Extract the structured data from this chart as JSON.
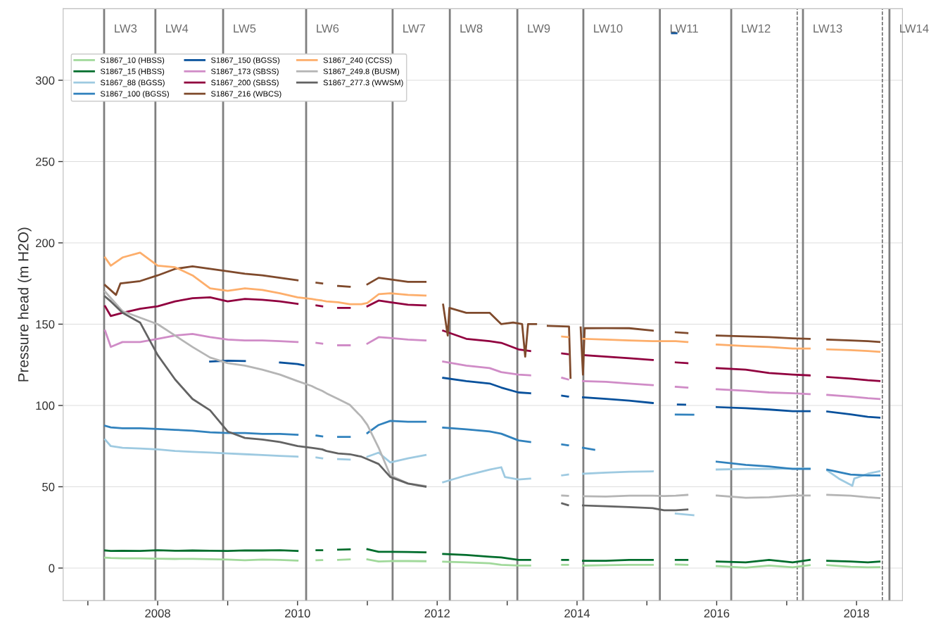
{
  "chart_data": {
    "type": "line",
    "ylabel": "Pressure head (m H2O)",
    "x": [
      "2007-04",
      "2007-05",
      "2007-07",
      "2007-10",
      "2008-01",
      "2008-04",
      "2008-07",
      "2008-10",
      "2009-01",
      "2009-04",
      "2009-07",
      "2009-10",
      "2010-01",
      "2010-03-15",
      "2010-04-10",
      "2010-05-10",
      "2010-06-01",
      "2010-08",
      "2010-10",
      "2010-12-01",
      "2011-01",
      "2011-03",
      "2011-05",
      "2011-08",
      "2011-11",
      "2012-01",
      "2012-02",
      "2012-06",
      "2012-10",
      "2012-12",
      "2013-03",
      "2013-05",
      "2013-07",
      "2013-10-15",
      "2013-11-15",
      "2013-12",
      "2014-02",
      "2014-06",
      "2014-10",
      "2015-02",
      "2015-04",
      "2015-06",
      "2015-08",
      "2015-11",
      "2016-01",
      "2016-06",
      "2016-10",
      "2017-02",
      "2017-05",
      "2017-07",
      "2017-08",
      "2017-12",
      "2018-03",
      "2018-05"
    ],
    "series": [
      {
        "name": "S1867_10 (HBSS)",
        "color": "#a1d99b",
        "values": [
          6.4,
          6.2,
          6,
          6,
          5.8,
          5.6,
          5.7,
          5.4,
          5.2,
          4.8,
          5.2,
          5,
          4.6,
          null,
          4.8,
          4.9,
          null,
          5,
          5.3,
          null,
          5.3,
          4,
          4.3,
          4.3,
          4.2,
          null,
          3.9,
          3.5,
          3,
          2,
          1.5,
          1.5,
          null,
          2,
          2,
          null,
          1.5,
          1.8,
          2,
          2,
          null,
          2.2,
          2,
          null,
          1.2,
          0.2,
          1.5,
          0.5,
          1.8,
          null,
          1.8,
          0.8,
          0.5,
          0.6
        ]
      },
      {
        "name": "S1867_15 (HBSS)",
        "color": "#006d2c",
        "values": [
          10.8,
          10.5,
          10.6,
          10.5,
          11,
          10.6,
          10.8,
          10.6,
          10.5,
          10.9,
          10.8,
          11,
          10.5,
          null,
          11,
          11,
          null,
          11.3,
          11.5,
          null,
          11.6,
          10,
          10,
          9.9,
          9.7,
          null,
          8.7,
          8,
          7,
          6.5,
          5,
          5,
          null,
          5,
          5,
          null,
          4.5,
          4.5,
          5,
          5,
          null,
          5,
          5,
          null,
          4,
          3.5,
          5,
          3.5,
          5,
          null,
          4.5,
          4,
          3.5,
          4
        ]
      },
      {
        "name": "S1867_88 (BGSS)",
        "color": "#9ecae1",
        "x": [
          "2007-04",
          "2007-05",
          "2007-07",
          "2007-10",
          "2008-01",
          "2008-04",
          "2008-07",
          "2008-10",
          "2009-01",
          "2009-04",
          "2009-07",
          "2009-10",
          "2010-01",
          "2010-03-15",
          "2010-04-10",
          "2010-05-10",
          "2010-06-01",
          "2010-08",
          "2010-10",
          "2010-12-01",
          "2011-01",
          "2011-03",
          "2011-05",
          "2011-08",
          "2011-11",
          "2012-01",
          "2012-02",
          "2012-06",
          "2012-10",
          "2012-12-01",
          "2012-12-20",
          "2013-03",
          "2013-05",
          "2013-07",
          "2013-10-15",
          "2013-11-15",
          "2013-12",
          "2014-02",
          "2014-06",
          "2014-10",
          "2015-02",
          "2015-04",
          "2015-06",
          "2015-09",
          "2015-11",
          "2016-01",
          "2016-06",
          "2016-10",
          "2017-02",
          "2017-05",
          "2017-07",
          "2017-08",
          "2017-10",
          "2017-12-10",
          "2017-12-20",
          "2018-03",
          "2018-05"
        ],
        "values": [
          79,
          75,
          74,
          73.5,
          73,
          72,
          71.5,
          71,
          70.5,
          70,
          69.5,
          69,
          68.5,
          null,
          68,
          67.5,
          null,
          67,
          66.7,
          null,
          68.5,
          71,
          65,
          67.5,
          69.5,
          null,
          52.8,
          57,
          60.5,
          62,
          56,
          54.5,
          55,
          null,
          57,
          57.5,
          null,
          58,
          58.7,
          59.2,
          59.5,
          null,
          33.5,
          32.5,
          null,
          60.6,
          61,
          61,
          61.2,
          61.3,
          null,
          60,
          55,
          50.6,
          55,
          58,
          59.5
        ]
      },
      {
        "name": "S1867_100 (BGSS)",
        "color": "#3182bd",
        "x": [
          "2007-04",
          "2007-05",
          "2007-07",
          "2007-10",
          "2008-01",
          "2008-04",
          "2008-07",
          "2008-10",
          "2009-01",
          "2009-04",
          "2009-07",
          "2009-10",
          "2010-01",
          "2010-03-15",
          "2010-04-10",
          "2010-05-10",
          "2010-06-01",
          "2010-08",
          "2010-10",
          "2010-12-01",
          "2011-01",
          "2011-03",
          "2011-05",
          "2011-08",
          "2011-11",
          "2012-01",
          "2012-02",
          "2012-06",
          "2012-10",
          "2012-12",
          "2013-03",
          "2013-05",
          "2013-07",
          "2013-10-15",
          "2013-11-15",
          "2013-12",
          "2014-02",
          "2014-04",
          "2014-06",
          "2015-06",
          "2015-09",
          "2015-11",
          "2016-01",
          "2016-06",
          "2016-10",
          "2017-02",
          "2017-05",
          "2017-07",
          "2017-08",
          "2017-12",
          "2018-03",
          "2018-05"
        ],
        "values": [
          87.5,
          86.5,
          86,
          86,
          85.5,
          85,
          84.5,
          83.5,
          83,
          83,
          82.5,
          82.5,
          82,
          null,
          81.5,
          81,
          null,
          80.7,
          80.7,
          null,
          83,
          88,
          90.5,
          90,
          90,
          null,
          86.4,
          85.3,
          84,
          82.6,
          78.5,
          77.5,
          null,
          76,
          75.5,
          null,
          74,
          72.8,
          null,
          94.4,
          94.3,
          null,
          65.4,
          63.5,
          62.5,
          61,
          61,
          null,
          60.5,
          57.5,
          57,
          57
        ]
      },
      {
        "name": "S1867_150 (BGSS)",
        "color": "#08519c",
        "x": [
          "2008-10",
          "2009-01",
          "2009-04",
          "2009-06",
          "2009-10",
          "2010-01",
          "2010-02",
          "2011-06",
          "2012-02",
          "2012-06",
          "2012-10",
          "2012-12",
          "2013-03",
          "2013-05",
          "2013-07",
          "2013-10-15",
          "2013-11-15",
          "2013-12",
          "2014-02",
          "2014-06",
          "2014-10",
          "2015-02",
          "2015-03-25",
          "2015-05-12",
          "2015-06-05",
          "2015-06-08",
          "2015-06-12",
          "2015-07-20",
          "2015-11",
          "2016-01",
          "2016-06",
          "2016-10",
          "2017-02",
          "2017-05",
          "2017-07",
          "2017-08",
          "2017-12",
          "2018-03",
          "2018-05"
        ],
        "values": [
          127,
          127.5,
          127.3,
          null,
          126.4,
          125.5,
          124.7,
          null,
          117,
          115,
          113.5,
          111,
          108,
          107.5,
          null,
          106,
          105.5,
          null,
          105,
          104,
          103,
          101.5,
          null,
          329,
          329,
          null,
          100.6,
          100.5,
          null,
          99,
          98.3,
          97.5,
          96.5,
          96.5,
          null,
          96.3,
          94.5,
          93,
          92.5
        ]
      },
      {
        "name": "S1867_173 (SBSS)",
        "color": "#d08cc7",
        "values": [
          146,
          136,
          139,
          139,
          141,
          143,
          144,
          142,
          140.5,
          140,
          140,
          139.5,
          139,
          null,
          138.5,
          138,
          null,
          137,
          137,
          null,
          138,
          142,
          141.5,
          140.5,
          140,
          null,
          127,
          124.5,
          123,
          120.5,
          119,
          118.5,
          null,
          117,
          116,
          null,
          115,
          114.5,
          113.5,
          112.5,
          null,
          111.5,
          111,
          null,
          110,
          109,
          108,
          107.5,
          107,
          null,
          106.5,
          105.5,
          104.5,
          104
        ]
      },
      {
        "name": "S1867_200 (SBSS)",
        "color": "#91003f",
        "values": [
          161,
          155,
          157,
          159.5,
          161,
          164,
          166,
          166.5,
          164,
          165.5,
          165,
          164,
          162.5,
          null,
          161.5,
          161,
          null,
          160,
          160,
          null,
          161,
          164.5,
          163.5,
          162,
          161.5,
          null,
          146,
          141,
          139.5,
          138.5,
          134.5,
          133.5,
          null,
          132,
          131.5,
          null,
          131,
          130,
          129,
          128,
          null,
          126.5,
          126,
          null,
          123,
          122,
          120,
          119,
          118.5,
          null,
          117.5,
          116.5,
          115.5,
          115
        ]
      },
      {
        "name": "S1867_216 (WBCS)",
        "color": "#7f4a2c",
        "x": [
          "2007-04",
          "2007-05-28",
          "2007-06-20",
          "2007-10",
          "2008-01",
          "2008-04",
          "2008-07",
          "2008-10",
          "2009-01",
          "2009-04",
          "2009-07",
          "2009-10",
          "2010-01",
          "2010-03-15",
          "2010-04-10",
          "2010-05-10",
          "2010-06-01",
          "2010-08",
          "2010-10",
          "2010-12-01",
          "2011-01",
          "2011-03",
          "2011-05",
          "2011-08",
          "2011-11",
          "2012-01",
          "2012-02",
          "2012-02-25",
          "2012-03-05",
          "2012-06",
          "2012-10",
          "2012-12",
          "2013-02",
          "2013-03-20",
          "2013-04-05",
          "2013-04-20",
          "2013-06",
          "2013-07",
          "2013-08",
          "2013-11-20",
          "2013-11-28",
          "2013-12-10",
          "2014-01-20",
          "2014-02-01",
          "2014-02-10",
          "2014-06",
          "2014-10",
          "2015-02",
          "2015-04",
          "2015-06",
          "2015-08",
          "2015-11",
          "2016-01",
          "2016-06",
          "2016-10",
          "2017-02",
          "2017-05",
          "2017-07",
          "2017-08",
          "2017-12",
          "2018-03",
          "2018-05"
        ],
        "values": [
          174,
          168,
          175,
          176.5,
          180,
          184,
          185.5,
          184,
          182.5,
          181,
          180,
          178.5,
          177,
          null,
          175.5,
          175,
          null,
          173.5,
          173,
          null,
          174.5,
          178.5,
          177.5,
          176,
          176,
          null,
          162,
          143,
          160,
          157,
          157,
          150,
          151,
          150,
          130,
          150,
          150,
          null,
          149,
          148.5,
          117,
          null,
          148,
          119,
          147.5,
          147.6,
          147.5,
          146,
          null,
          145,
          144.5,
          null,
          143,
          142.5,
          142,
          141.3,
          141,
          null,
          140.5,
          140,
          139.5,
          139
        ]
      },
      {
        "name": "S1867_240 (CCSS)",
        "color": "#fdae6b",
        "values": [
          191,
          186,
          191,
          194,
          186,
          185,
          180,
          172,
          170.5,
          172,
          171,
          169,
          166.5,
          165.5,
          165,
          164.5,
          164,
          163.5,
          162.3,
          162.3,
          163,
          168.4,
          169,
          168,
          167.6,
          null,
          null,
          null,
          null,
          null,
          null,
          null,
          null,
          142.4,
          142,
          null,
          141,
          140.5,
          140,
          139.5,
          139.5,
          139.5,
          139,
          null,
          137.5,
          136.5,
          136,
          135,
          135,
          null,
          134.5,
          134,
          133.5,
          133
        ]
      },
      {
        "name": "S1867_249.8 (BUSM)",
        "color": "#b5b5b5",
        "values": [
          170,
          166,
          158,
          154,
          150,
          143,
          136,
          129.5,
          126,
          124.5,
          122,
          119,
          115,
          112,
          110.5,
          109,
          107.5,
          104,
          100.4,
          93,
          88,
          74,
          57,
          52,
          50.5,
          null,
          null,
          null,
          null,
          null,
          null,
          null,
          null,
          44.6,
          44.4,
          null,
          44.2,
          44,
          44.5,
          44.5,
          44.3,
          44.5,
          45,
          null,
          44.6,
          43.2,
          43.5,
          44.6,
          44.6,
          null,
          45,
          44.5,
          43.5,
          43
        ]
      },
      {
        "name": "S1867_277.3 (WWSM)",
        "color": "#636363",
        "values": [
          167,
          164,
          157,
          151,
          131,
          116,
          104,
          97,
          84,
          80,
          79,
          77.5,
          75,
          74,
          73.5,
          73,
          72,
          70.5,
          70,
          68.5,
          67,
          64,
          56,
          52,
          50,
          null,
          null,
          null,
          null,
          null,
          null,
          null,
          null,
          39.8,
          38.7,
          null,
          38.5,
          38,
          37.5,
          36.8,
          35.5,
          35.5,
          36,
          null,
          null,
          null,
          null,
          null,
          null,
          null,
          null,
          null,
          null,
          null
        ]
      }
    ],
    "xlim": [
      "2006-08-25",
      "2018-08-29"
    ],
    "xticks": [
      {
        "value": "2007",
        "label": null
      },
      {
        "value": "2008",
        "label": "2008"
      },
      {
        "value": "2009",
        "label": null
      },
      {
        "value": "2010",
        "label": "2010"
      },
      {
        "value": "2011",
        "label": null
      },
      {
        "value": "2012",
        "label": "2012"
      },
      {
        "value": "2013",
        "label": null
      },
      {
        "value": "2014",
        "label": "2014"
      },
      {
        "value": "2015",
        "label": null
      },
      {
        "value": "2016",
        "label": "2016"
      },
      {
        "value": "2017",
        "label": null
      },
      {
        "value": "2018",
        "label": "2018"
      }
    ],
    "ylim": [
      -20,
      344
    ],
    "yticks": [
      0,
      50,
      100,
      150,
      200,
      250,
      300
    ],
    "grid": "y",
    "legend": "top left",
    "ref_lines": [
      {
        "axis": "x",
        "value": "2007-03-27",
        "label": "LW3",
        "color": "#7f7f7f"
      },
      {
        "axis": "x",
        "value": "2007-12-20",
        "label": "LW4",
        "color": "#7f7f7f"
      },
      {
        "axis": "x",
        "value": "2008-12-08",
        "label": "LW5",
        "color": "#7f7f7f"
      },
      {
        "axis": "x",
        "value": "2010-02-15",
        "label": "LW6",
        "color": "#7f7f7f"
      },
      {
        "axis": "x",
        "value": "2011-05-13",
        "label": "LW7",
        "color": "#7f7f7f"
      },
      {
        "axis": "x",
        "value": "2012-03-07",
        "label": "LW8",
        "color": "#7f7f7f"
      },
      {
        "axis": "x",
        "value": "2013-02-23",
        "label": "LW9",
        "color": "#7f7f7f"
      },
      {
        "axis": "x",
        "value": "2014-02-03",
        "label": "LW10",
        "color": "#7f7f7f"
      },
      {
        "axis": "x",
        "value": "2015-03-10",
        "label": "LW11",
        "color": "#7f7f7f"
      },
      {
        "axis": "x",
        "value": "2016-03-17",
        "label": "LW12",
        "color": "#7f7f7f"
      },
      {
        "axis": "x",
        "value": "2017-03-27",
        "label": "LW13",
        "color": "#7f7f7f"
      },
      {
        "axis": "x",
        "value": "2018-06-22",
        "label": "LW14",
        "color": "#7f7f7f"
      },
      {
        "axis": "x",
        "value": "2017-02-25",
        "color": "#555555",
        "line_style": "dashed"
      },
      {
        "axis": "x",
        "value": "2018-05-16",
        "color": "#555555",
        "line_style": "dashed"
      }
    ]
  }
}
